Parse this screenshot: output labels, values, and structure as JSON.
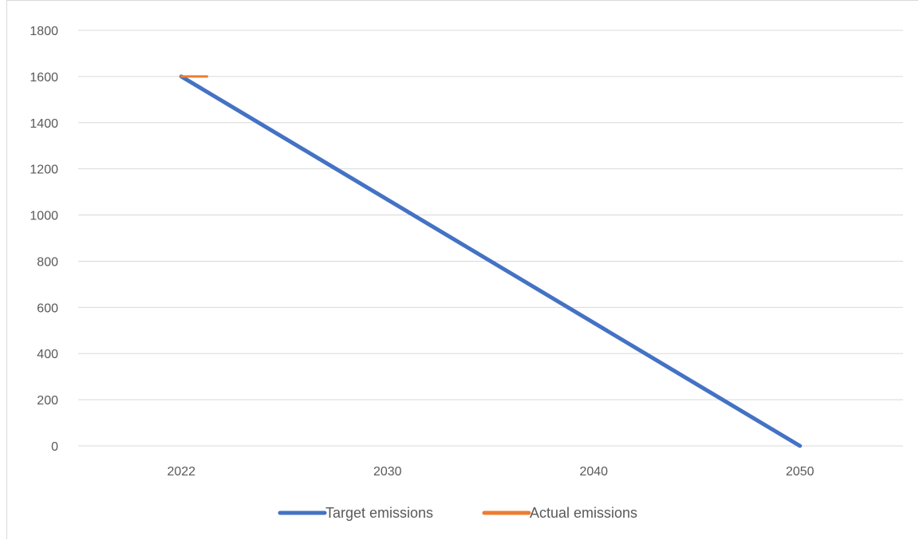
{
  "chart_data": {
    "type": "line",
    "x": [
      2022,
      2030,
      2040,
      2050
    ],
    "x_tick_labels": [
      "2022",
      "2030",
      "2040",
      "2050"
    ],
    "series": [
      {
        "name": "Target emissions",
        "color": "#4472c4",
        "points": [
          [
            2022,
            1600
          ],
          [
            2050,
            0
          ]
        ]
      },
      {
        "name": "Actual emissions",
        "color": "#ed7d31",
        "points": [
          [
            2022,
            1600
          ],
          [
            2023,
            1600
          ]
        ]
      }
    ],
    "ylim": [
      0,
      1800
    ],
    "y_ticks": [
      0,
      200,
      400,
      600,
      800,
      1000,
      1200,
      1400,
      1600,
      1800
    ],
    "grid": true,
    "legend_position": "bottom",
    "title": "",
    "xlabel": "",
    "ylabel": ""
  }
}
